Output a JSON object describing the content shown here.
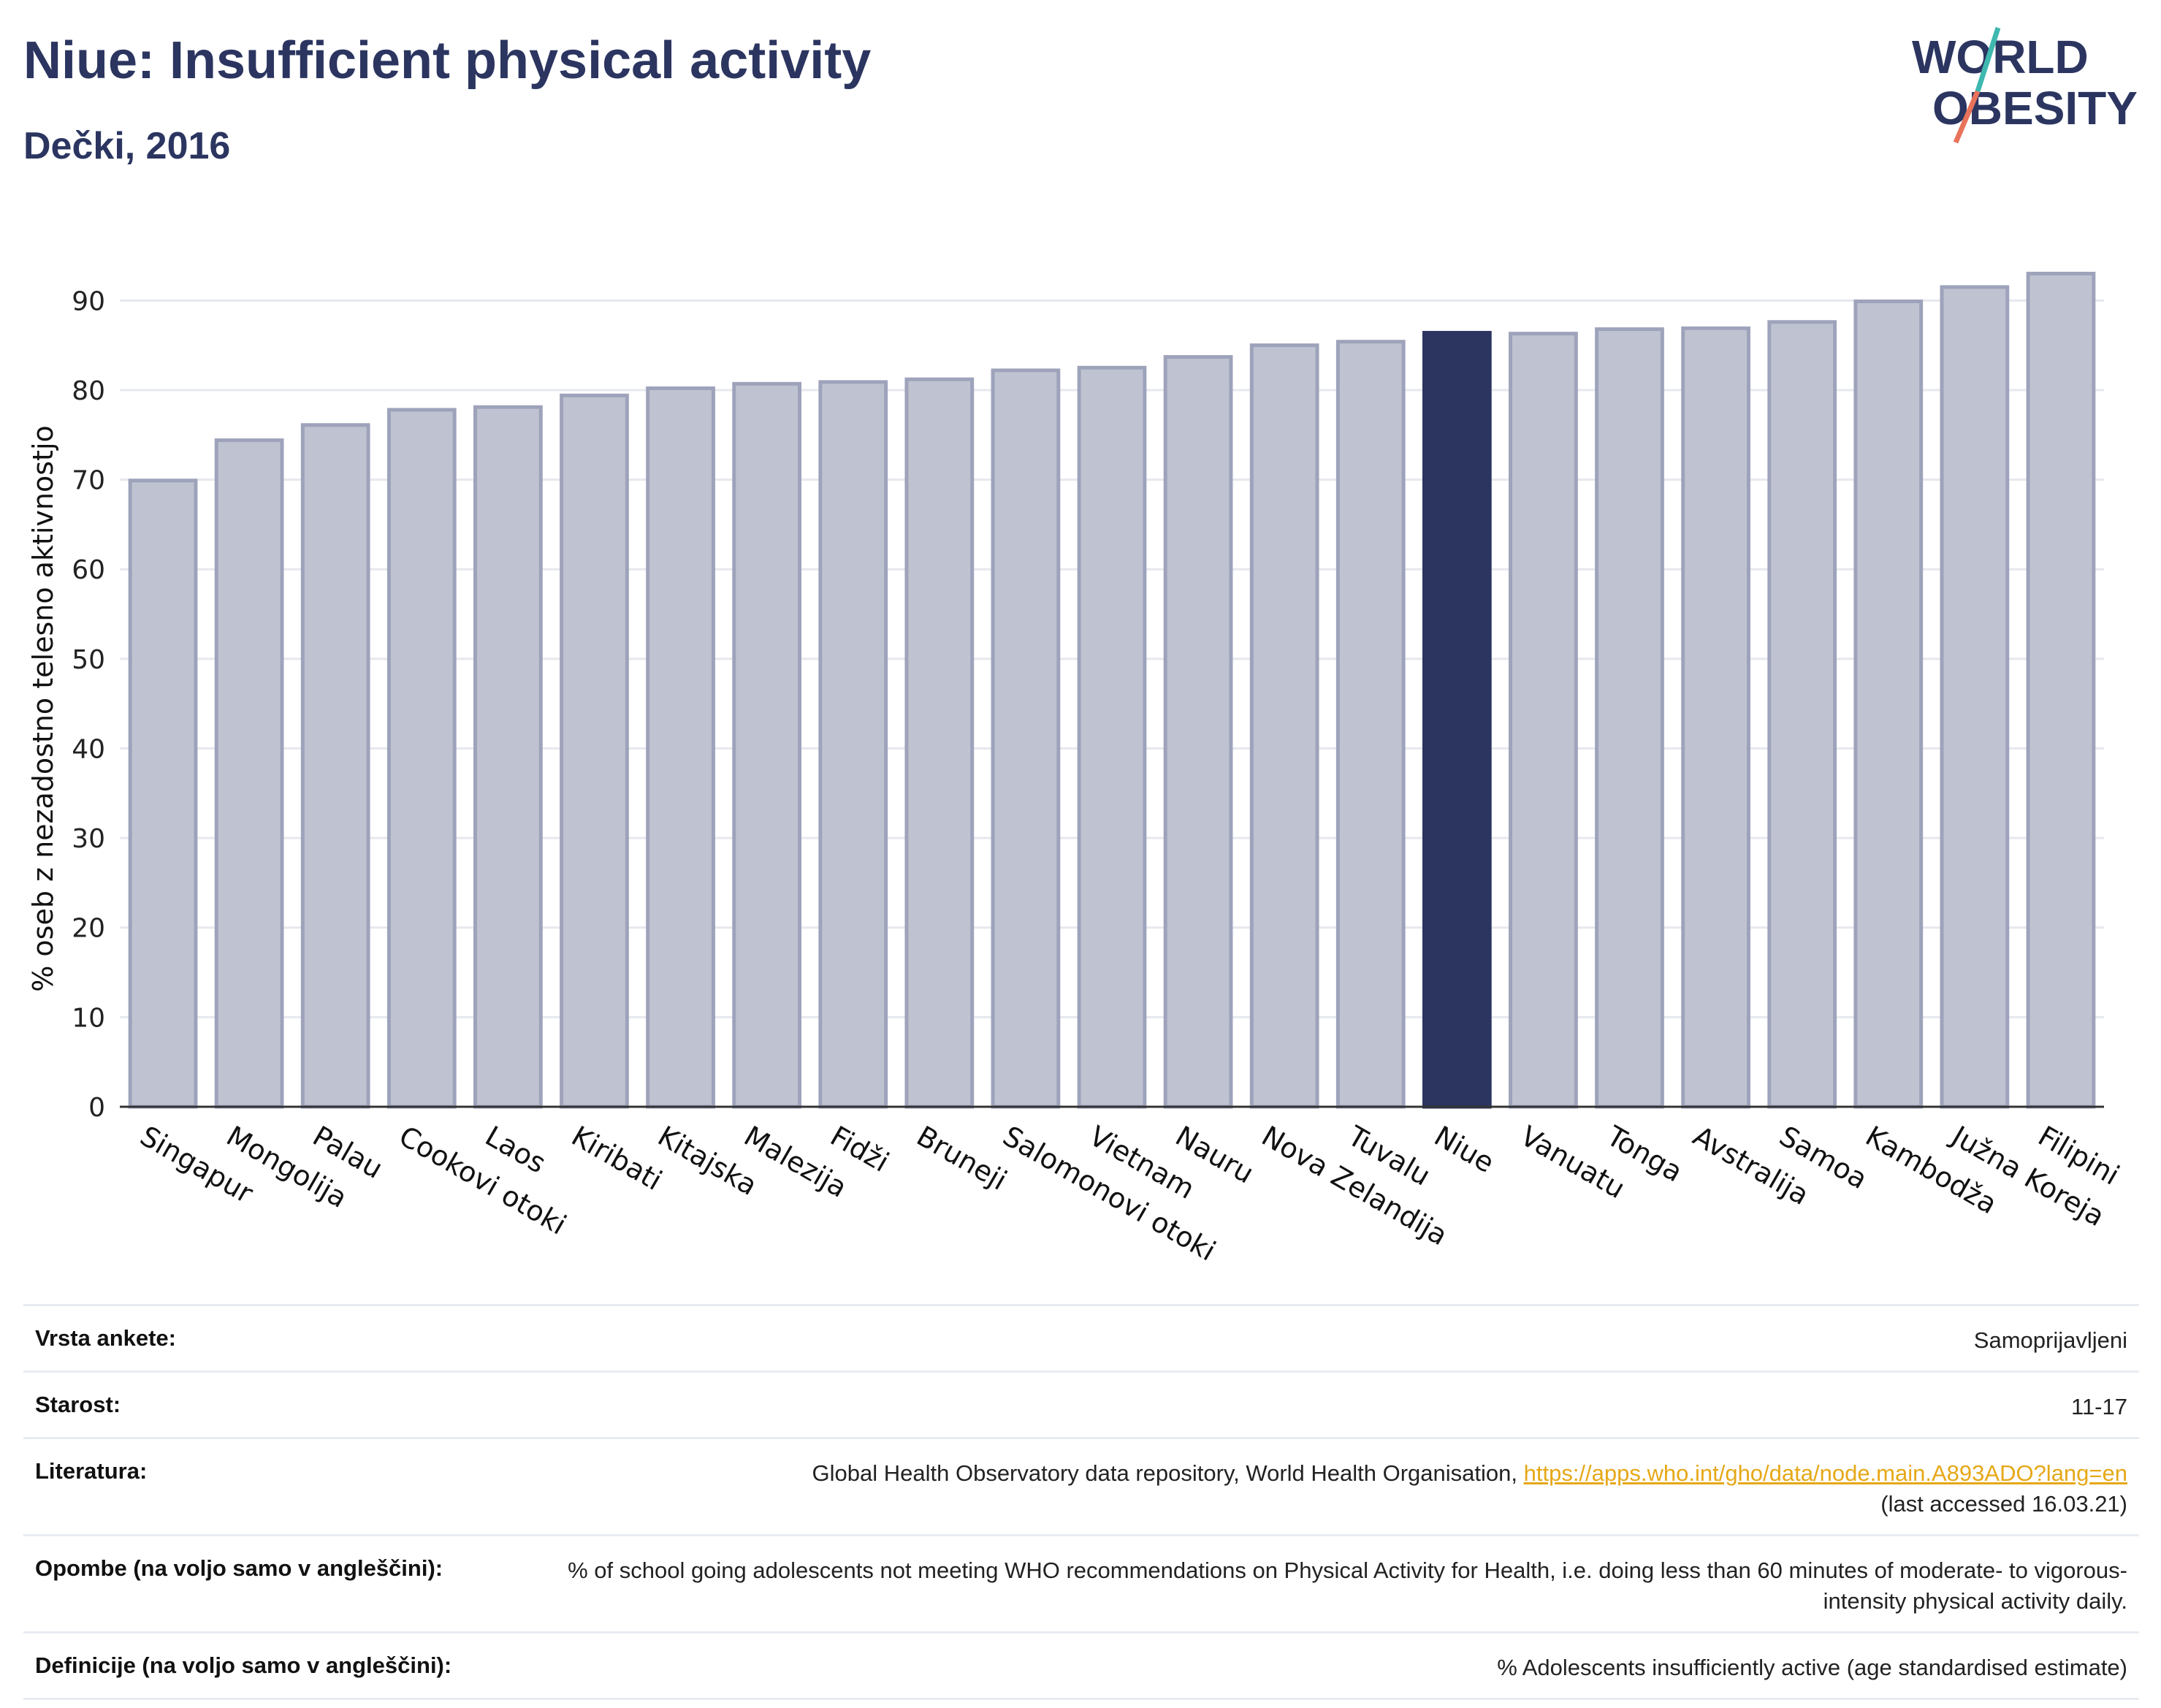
{
  "header": {
    "title": "Niue: Insufficient physical activity",
    "subtitle": "Dečki, 2016"
  },
  "logo": {
    "line1": "WORLD",
    "line2": "OBESITY",
    "accent_colors": [
      "#3fb8af",
      "#e8735a"
    ],
    "text_color": "#2b3560"
  },
  "colors": {
    "highlight": "#2b3560",
    "bar_fill": "#bfc3d1",
    "bar_stroke": "#9ea3bb",
    "grid": "#e6e8ee"
  },
  "chart_data": {
    "type": "bar",
    "title": "Niue: Insufficient physical activity",
    "subtitle": "Dečki, 2016",
    "ylabel": "% oseb z nezadostno telesno aktivnostjo",
    "xlabel": "",
    "ylim": [
      0,
      95
    ],
    "yticks": [
      0,
      10,
      20,
      30,
      40,
      50,
      60,
      70,
      80,
      90
    ],
    "grid": true,
    "highlight": "Niue",
    "categories": [
      "Singapur",
      "Mongolija",
      "Palau",
      "Cookovi otoki",
      "Laos",
      "Kiribati",
      "Kitajska",
      "Malezija",
      "Fidži",
      "Bruneji",
      "Salomonovi otoki",
      "Vietnam",
      "Nauru",
      "Nova Zelandija",
      "Tuvalu",
      "Niue",
      "Vanuatu",
      "Tonga",
      "Avstralija",
      "Samoa",
      "Kambodža",
      "Južna Koreja",
      "Filipini"
    ],
    "values": [
      69.9,
      74.4,
      76.1,
      77.8,
      78.1,
      79.4,
      80.2,
      80.7,
      80.9,
      81.2,
      82.2,
      82.5,
      83.7,
      85.0,
      85.4,
      86.4,
      86.3,
      86.8,
      86.9,
      87.6,
      89.9,
      91.5,
      93.0
    ]
  },
  "meta": {
    "rows": [
      {
        "label": "Vrsta ankete:",
        "value": "Samoprijavljeni"
      },
      {
        "label": "Starost:",
        "value": "11-17"
      },
      {
        "label": "Literatura:",
        "value": "Global Health Observatory data repository, World Health Organisation, ",
        "link": "https://apps.who.int/gho/data/node.main.A893ADO?lang=en",
        "value2": "(last accessed 16.03.21)"
      },
      {
        "label": "Opombe (na voljo samo v angleščini):",
        "value": "% of school going adolescents not meeting WHO recommendations on Physical Activity for Health, i.e. doing less than 60 minutes of moderate- to vigorous-intensity physical activity daily."
      },
      {
        "label": "Definicije (na voljo samo v angleščini):",
        "value": "% Adolescents insufficiently active (age standardised estimate)"
      }
    ]
  }
}
